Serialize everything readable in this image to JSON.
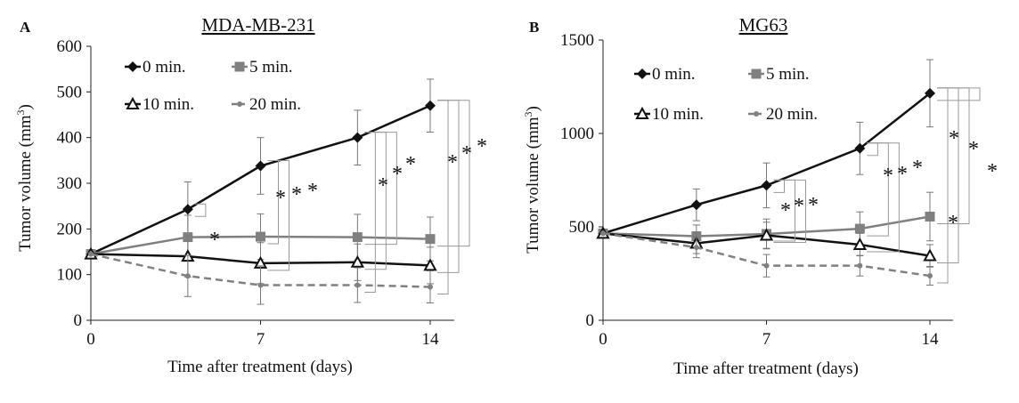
{
  "chart_data": [
    {
      "type": "line",
      "panel_label": "A",
      "title": "MDA-MB-231",
      "xlabel": "Time after treatment (days)",
      "ylabel_main": "Tumor volume (mm",
      "ylabel_sup": "3",
      "ylabel_end": ")",
      "xlim": [
        0,
        14
      ],
      "ylim": [
        0,
        600
      ],
      "xticks": [
        0,
        7,
        14
      ],
      "yticks": [
        0,
        100,
        200,
        300,
        400,
        500,
        600
      ],
      "legend_position": "top-left",
      "series": [
        {
          "name": "0 min.",
          "x": [
            0,
            4,
            7,
            11,
            14
          ],
          "y": [
            145,
            243,
            338,
            400,
            470
          ],
          "err": [
            0,
            60,
            62,
            60,
            58
          ],
          "color": "#111111",
          "marker": "diamond",
          "dash": false
        },
        {
          "name": "5 min.",
          "x": [
            0,
            4,
            7,
            11,
            14
          ],
          "y": [
            145,
            182,
            183,
            182,
            178
          ],
          "err": [
            0,
            48,
            50,
            50,
            48
          ],
          "color": "#808080",
          "marker": "square",
          "dash": false
        },
        {
          "name": "10 min.",
          "x": [
            0,
            4,
            7,
            11,
            14
          ],
          "y": [
            145,
            140,
            125,
            127,
            120
          ],
          "err": [
            0,
            45,
            45,
            40,
            40
          ],
          "color": "#111111",
          "marker": "triangle",
          "dash": false
        },
        {
          "name": "20 min.",
          "x": [
            0,
            4,
            7,
            11,
            14
          ],
          "y": [
            145,
            97,
            77,
            77,
            73
          ],
          "err": [
            0,
            45,
            42,
            38,
            35
          ],
          "color": "#808080",
          "marker": "dot",
          "dash": true
        }
      ],
      "significance": [
        "*",
        "*",
        "*",
        "*",
        "*",
        "*",
        "*",
        "*",
        "*",
        "*"
      ]
    },
    {
      "type": "line",
      "panel_label": "B",
      "title": "MG63",
      "xlabel": "Time after treatment (days)",
      "ylabel_main": "Tumor volume (mm",
      "ylabel_sup": "3",
      "ylabel_end": ")",
      "xlim": [
        0,
        14
      ],
      "ylim": [
        0,
        1500
      ],
      "xticks": [
        0,
        7,
        14
      ],
      "yticks": [
        0,
        500,
        1000,
        1500
      ],
      "legend_position": "top-left",
      "series": [
        {
          "name": "0 min.",
          "x": [
            0,
            4,
            7,
            11,
            14
          ],
          "y": [
            465,
            618,
            722,
            920,
            1215
          ],
          "err": [
            0,
            85,
            120,
            140,
            180
          ],
          "color": "#111111",
          "marker": "diamond",
          "dash": false
        },
        {
          "name": "5 min.",
          "x": [
            0,
            4,
            7,
            11,
            14
          ],
          "y": [
            465,
            450,
            462,
            490,
            555
          ],
          "err": [
            0,
            60,
            80,
            90,
            130
          ],
          "color": "#808080",
          "marker": "square",
          "dash": false
        },
        {
          "name": "10 min.",
          "x": [
            0,
            4,
            7,
            11,
            14
          ],
          "y": [
            465,
            412,
            455,
            405,
            345
          ],
          "err": [
            0,
            55,
            70,
            60,
            60
          ],
          "color": "#111111",
          "marker": "triangle",
          "dash": false
        },
        {
          "name": "20 min.",
          "x": [
            0,
            4,
            7,
            11,
            14
          ],
          "y": [
            465,
            390,
            292,
            292,
            238
          ],
          "err": [
            0,
            55,
            60,
            55,
            50
          ],
          "color": "#808080",
          "marker": "dot",
          "dash": true
        }
      ],
      "significance": [
        "*",
        "*",
        "*",
        "*",
        "*",
        "*",
        "*",
        "*",
        "*",
        "*"
      ]
    }
  ]
}
